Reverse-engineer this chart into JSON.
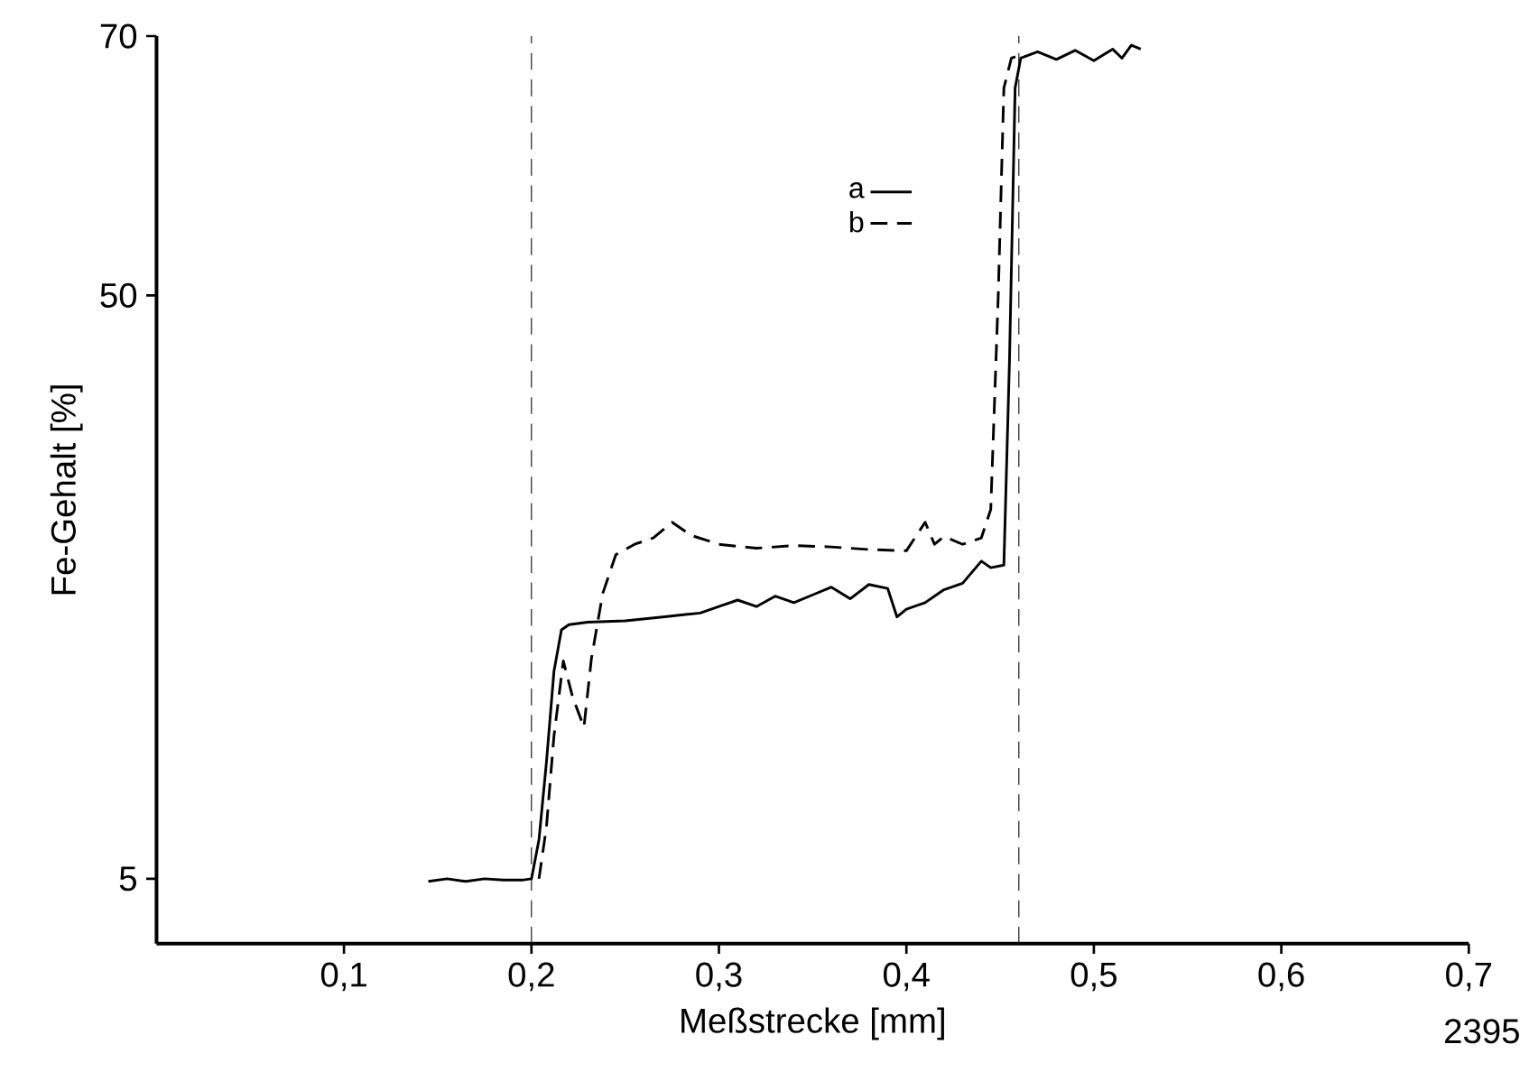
{
  "chart_data": {
    "type": "line",
    "xlabel": "Meßstrecke [mm]",
    "ylabel": "Fe-Gehalt [%]",
    "xlim": [
      0,
      0.7
    ],
    "ylim": [
      0,
      70
    ],
    "xticks": [
      {
        "value": 0.1,
        "label": "0,1"
      },
      {
        "value": 0.2,
        "label": "0,2"
      },
      {
        "value": 0.3,
        "label": "0,3"
      },
      {
        "value": 0.4,
        "label": "0,4"
      },
      {
        "value": 0.5,
        "label": "0,5"
      },
      {
        "value": 0.6,
        "label": "0,6"
      },
      {
        "value": 0.7,
        "label": "0,7"
      }
    ],
    "yticks": [
      5,
      50,
      70
    ],
    "legend": "top",
    "grid": false,
    "marker": "none",
    "series": [
      {
        "name": "a",
        "color": "#000000",
        "line_style": "solid",
        "x": [
          0.145,
          0.155,
          0.165,
          0.175,
          0.185,
          0.195,
          0.2,
          0.204,
          0.208,
          0.212,
          0.216,
          0.22,
          0.23,
          0.25,
          0.27,
          0.29,
          0.3,
          0.31,
          0.32,
          0.33,
          0.34,
          0.35,
          0.36,
          0.37,
          0.38,
          0.39,
          0.395,
          0.4,
          0.41,
          0.42,
          0.43,
          0.44,
          0.445,
          0.452,
          0.455,
          0.458,
          0.461,
          0.47,
          0.48,
          0.49,
          0.5,
          0.51,
          0.515,
          0.52,
          0.525
        ],
        "values": [
          4.8,
          5.0,
          4.8,
          5.0,
          4.9,
          4.9,
          5.0,
          8,
          14,
          21,
          24.2,
          24.6,
          24.8,
          24.9,
          25.2,
          25.5,
          26,
          26.5,
          26,
          26.8,
          26.3,
          26.9,
          27.5,
          26.6,
          27.7,
          27.4,
          25.2,
          25.8,
          26.3,
          27.3,
          27.8,
          29.5,
          29.0,
          29.2,
          45,
          66,
          68.3,
          68.8,
          68.2,
          68.9,
          68.1,
          69.0,
          68.3,
          69.3,
          69.0
        ]
      },
      {
        "name": "b",
        "color": "#000000",
        "line_style": "dashed",
        "x": [
          0.204,
          0.208,
          0.212,
          0.217,
          0.222,
          0.228,
          0.232,
          0.238,
          0.245,
          0.255,
          0.265,
          0.275,
          0.285,
          0.3,
          0.32,
          0.34,
          0.36,
          0.38,
          0.4,
          0.41,
          0.415,
          0.42,
          0.43,
          0.44,
          0.445,
          0.449,
          0.452,
          0.456,
          0.46
        ],
        "values": [
          5.0,
          9,
          16,
          21.8,
          19,
          16.7,
          22,
          27,
          30,
          30.8,
          31.3,
          32.5,
          31.5,
          30.8,
          30.5,
          30.7,
          30.6,
          30.4,
          30.3,
          32.5,
          30.8,
          31.4,
          30.8,
          31.3,
          33.5,
          50,
          66,
          68.3,
          68.5
        ]
      }
    ],
    "ref_lines": [
      {
        "axis": "x",
        "value": 0.2,
        "line_style": "dashed"
      },
      {
        "axis": "x",
        "value": 0.46,
        "line_style": "dashed"
      }
    ],
    "annotations": [
      "2395"
    ]
  }
}
